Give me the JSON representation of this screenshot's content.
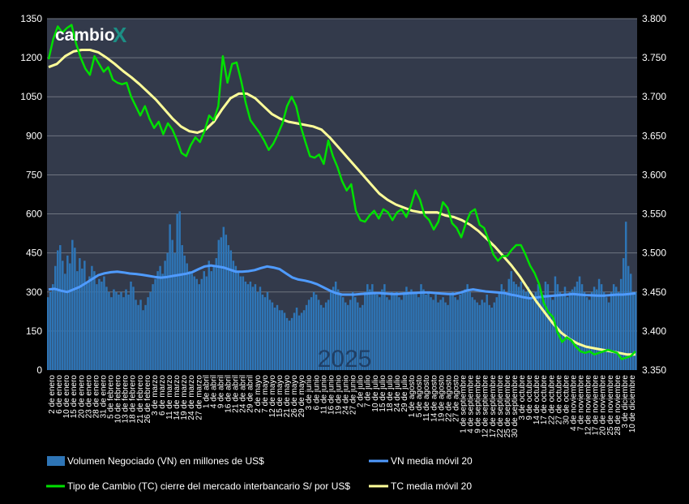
{
  "logo": {
    "text": "cambio",
    "accent": "X"
  },
  "watermark": "2025",
  "colors": {
    "background": "#000000",
    "plot_background": "#333a4b",
    "grid": "#6f7580",
    "volume_bar": "#2e75b6",
    "vn_ma": "#4f9bff",
    "tc": "#00e000",
    "tc_ma": "#ffff99"
  },
  "chart_data": {
    "type": "bar",
    "y_left": {
      "ticks": [
        "0",
        "150",
        "300",
        "450",
        "600",
        "750",
        "900",
        "1050",
        "1200",
        "1350"
      ],
      "lim": [
        0,
        1350
      ]
    },
    "y_right": {
      "ticks": [
        "3.350",
        "3.400",
        "3.450",
        "3.500",
        "3.550",
        "3.600",
        "3.650",
        "3.700",
        "3.750",
        "3.800"
      ],
      "lim": [
        3.35,
        3.8
      ]
    },
    "x_tick_labels": [
      "2 de enero",
      "6 de enero",
      "10 de enero",
      "15 de enero",
      "20 de enero",
      "23 de enero",
      "28 de enero",
      "31 de enero",
      "5 de febrero",
      "10 de febrero",
      "13 de febrero",
      "18 de febrero",
      "21 de febrero",
      "26 de febrero",
      "3 de marzo",
      "6 de marzo",
      "11 de marzo",
      "14 de marzo",
      "19 de marzo",
      "24 de marzo",
      "27 de marzo",
      "1 de abril",
      "4 de abril",
      "9 de abril",
      "16 de abril",
      "21 de abril",
      "24 de abril",
      "29 de abril",
      "2 de mayo",
      "7 de mayo",
      "12 de mayo",
      "15 de mayo",
      "21 de mayo",
      "26 de mayo",
      "29 de mayo",
      "3 de junio",
      "6 de junio",
      "11 de junio",
      "16 de junio",
      "19 de junio",
      "24 de junio",
      "27 de junio",
      "2 de julio",
      "7 de julio",
      "10 de julio",
      "15 de julio",
      "18 de julio",
      "24 de julio",
      "29 de julio",
      "1 de agosto",
      "5 de agosto",
      "11 de agosto",
      "14 de agosto",
      "19 de agosto",
      "22 de agosto",
      "27 de agosto",
      "1 de septiembre",
      "4 de septiembre",
      "9 de septiembre",
      "12 de septiembre",
      "17 de septiembre",
      "22 de septiembre",
      "25 de septiembre",
      "30 de septiembre",
      "3 de octubre",
      "9 de octubre",
      "14 de octubre",
      "17 de octubre",
      "22 de octubre",
      "27 de octubre",
      "30 de octubre",
      "4 de noviembre",
      "7 de noviembre",
      "12 de noviembre",
      "17 de noviembre",
      "20 de noviembre",
      "25 de noviembre",
      "28 de noviembre",
      "3 de diciembre",
      "10 de diciembre"
    ],
    "volume": [
      280,
      300,
      330,
      400,
      460,
      480,
      420,
      370,
      440,
      410,
      500,
      470,
      380,
      430,
      390,
      420,
      340,
      360,
      400,
      380,
      330,
      350,
      340,
      360,
      320,
      300,
      280,
      310,
      300,
      290,
      300,
      280,
      310,
      290,
      340,
      320,
      270,
      250,
      270,
      230,
      250,
      280,
      300,
      330,
      350,
      380,
      400,
      370,
      420,
      450,
      560,
      500,
      450,
      600,
      610,
      480,
      440,
      410,
      380,
      370,
      360,
      350,
      330,
      350,
      380,
      360,
      420,
      380,
      400,
      430,
      500,
      510,
      550,
      520,
      480,
      460,
      420,
      400,
      380,
      360,
      360,
      340,
      330,
      340,
      320,
      330,
      300,
      320,
      290,
      280,
      300,
      270,
      260,
      240,
      250,
      230,
      230,
      220,
      200,
      190,
      200,
      220,
      240,
      210,
      220,
      230,
      250,
      270,
      280,
      300,
      290,
      270,
      250,
      240,
      260,
      270,
      300,
      320,
      340,
      310,
      290,
      280,
      260,
      250,
      270,
      300,
      280,
      260,
      240,
      250,
      300,
      330,
      310,
      330,
      300,
      290,
      280,
      310,
      330,
      280,
      270,
      300,
      290,
      300,
      280,
      270,
      300,
      320,
      290,
      310,
      300,
      300,
      280,
      330,
      310,
      290,
      300,
      280,
      270,
      290,
      260,
      270,
      280,
      260,
      250,
      290,
      300,
      280,
      270,
      290,
      300,
      310,
      330,
      300,
      280,
      270,
      260,
      250,
      270,
      260,
      290,
      250,
      240,
      260,
      280,
      300,
      330,
      310,
      290,
      350,
      380,
      340,
      330,
      320,
      340,
      310,
      300,
      320,
      280,
      270,
      300,
      330,
      310,
      290,
      340,
      330,
      280,
      270,
      360,
      330,
      300,
      290,
      320,
      280,
      300,
      310,
      320,
      340,
      360,
      330,
      300,
      280,
      270,
      300,
      320,
      310,
      350,
      330,
      300,
      280,
      260,
      300,
      330,
      320,
      300,
      350,
      430,
      570,
      400,
      370,
      300,
      300
    ],
    "series": [
      {
        "name": "Volumen Negociado (VN) en millones de US$",
        "axis": "left"
      },
      {
        "name": "VN media móvil 20",
        "axis": "left",
        "values": [
          310,
          312,
          305,
          300,
          310,
          320,
          335,
          350,
          365,
          372,
          376,
          378,
          375,
          371,
          369,
          366,
          362,
          358,
          355,
          358,
          362,
          366,
          370,
          376,
          388,
          398,
          402,
          398,
          394,
          386,
          378,
          378,
          380,
          384,
          392,
          398,
          394,
          388,
          372,
          356,
          348,
          344,
          338,
          330,
          318,
          306,
          296,
          290,
          290,
          290,
          292,
          294,
          296,
          296,
          294,
          292,
          292,
          294,
          296,
          297,
          298,
          298,
          296,
          294,
          292,
          292,
          298,
          306,
          310,
          306,
          302,
          300,
          298,
          296,
          290,
          286,
          280,
          276,
          278,
          282,
          284,
          286,
          288,
          290,
          292,
          290,
          288,
          287,
          286,
          286,
          288,
          290,
          290,
          292,
          295
        ]
      },
      {
        "name": "Tipo de Cambio (TC) cierre del mercado interbancario S/ por US$",
        "axis": "right",
        "values": [
          3.748,
          3.774,
          3.79,
          3.782,
          3.788,
          3.792,
          3.768,
          3.75,
          3.736,
          3.728,
          3.752,
          3.742,
          3.732,
          3.738,
          3.722,
          3.718,
          3.716,
          3.718,
          3.7,
          3.688,
          3.676,
          3.688,
          3.672,
          3.66,
          3.668,
          3.652,
          3.666,
          3.658,
          3.644,
          3.628,
          3.624,
          3.638,
          3.648,
          3.642,
          3.656,
          3.676,
          3.67,
          3.688,
          3.752,
          3.718,
          3.742,
          3.744,
          3.72,
          3.692,
          3.67,
          3.662,
          3.654,
          3.644,
          3.632,
          3.64,
          3.652,
          3.666,
          3.688,
          3.7,
          3.688,
          3.662,
          3.642,
          3.624,
          3.622,
          3.626,
          3.614,
          3.644,
          3.624,
          3.61,
          3.592,
          3.58,
          3.588,
          3.554,
          3.542,
          3.54,
          3.548,
          3.554,
          3.544,
          3.556,
          3.552,
          3.542,
          3.552,
          3.556,
          3.546,
          3.56,
          3.58,
          3.568,
          3.548,
          3.542,
          3.53,
          3.54,
          3.565,
          3.558,
          3.538,
          3.532,
          3.52,
          3.538,
          3.552,
          3.556,
          3.536,
          3.532,
          3.516,
          3.498,
          3.49,
          3.496,
          3.496,
          3.504,
          3.51,
          3.51,
          3.498,
          3.484,
          3.474,
          3.46,
          3.436,
          3.424,
          3.418,
          3.398,
          3.386,
          3.392,
          3.388,
          3.38,
          3.374,
          3.372,
          3.374,
          3.37,
          3.372,
          3.374,
          3.376,
          3.374,
          3.372,
          3.364,
          3.366,
          3.368,
          3.374
        ]
      },
      {
        "name": "TC media móvil 20",
        "axis": "right",
        "values": [
          3.738,
          3.742,
          3.752,
          3.758,
          3.76,
          3.76,
          3.757,
          3.75,
          3.742,
          3.733,
          3.725,
          3.716,
          3.706,
          3.696,
          3.684,
          3.672,
          3.662,
          3.656,
          3.654,
          3.658,
          3.668,
          3.684,
          3.698,
          3.704,
          3.704,
          3.698,
          3.688,
          3.678,
          3.672,
          3.668,
          3.666,
          3.664,
          3.662,
          3.658,
          3.648,
          3.636,
          3.624,
          3.612,
          3.6,
          3.588,
          3.576,
          3.568,
          3.562,
          3.558,
          3.554,
          3.552,
          3.552,
          3.552,
          3.548,
          3.546,
          3.542,
          3.536,
          3.528,
          3.518,
          3.508,
          3.496,
          3.484,
          3.47,
          3.454,
          3.438,
          3.424,
          3.41,
          3.398,
          3.39,
          3.384,
          3.38,
          3.378,
          3.376,
          3.374,
          3.372,
          3.37,
          3.37
        ]
      }
    ]
  }
}
